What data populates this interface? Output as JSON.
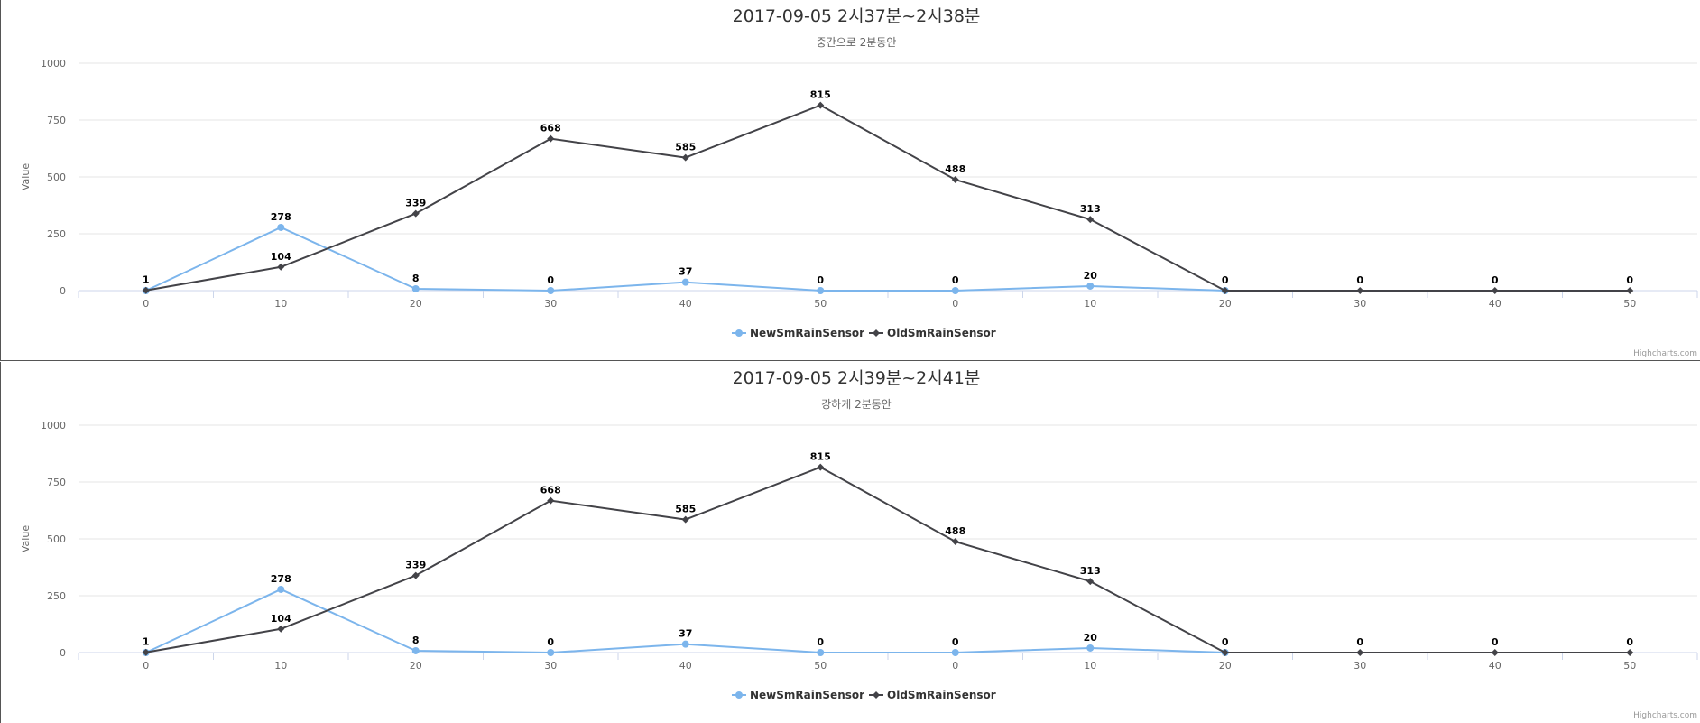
{
  "chart_data": [
    {
      "type": "line",
      "title": "2017-09-05 2시37분~2시38분",
      "subtitle": "중간으로 2분동안",
      "ylabel": "Value",
      "ylim": [
        0,
        1000
      ],
      "yticks": [
        0,
        250,
        500,
        750,
        1000
      ],
      "categories": [
        "0",
        "10",
        "20",
        "30",
        "40",
        "50",
        "0",
        "10",
        "20",
        "30",
        "40",
        "50"
      ],
      "grid": true,
      "legend_position": "bottom-center",
      "series": [
        {
          "name": "NewSmRainSensor",
          "color": "#7cb5ec",
          "marker": "circle",
          "values": [
            0,
            278,
            8,
            0,
            37,
            0,
            0,
            20,
            0,
            null,
            null,
            null
          ]
        },
        {
          "name": "OldSmRainSensor",
          "color": "#434348",
          "marker": "diamond",
          "values": [
            1,
            104,
            339,
            668,
            585,
            815,
            488,
            313,
            0,
            0,
            0,
            0
          ]
        }
      ],
      "data_labels": [
        "1",
        "278",
        "104",
        "8",
        "339",
        "0",
        "668",
        "37",
        "585",
        "0",
        "815",
        "0",
        "488",
        "20",
        "313",
        "0",
        "0",
        "0",
        "0"
      ],
      "credits": "Highcharts.com"
    },
    {
      "type": "line",
      "title": "2017-09-05 2시39분~2시41분",
      "subtitle": "강하게 2분동안",
      "ylabel": "Value",
      "ylim": [
        0,
        1000
      ],
      "yticks": [
        0,
        250,
        500,
        750,
        1000
      ],
      "categories": [
        "0",
        "10",
        "20",
        "30",
        "40",
        "50",
        "0",
        "10",
        "20",
        "30",
        "40",
        "50"
      ],
      "grid": true,
      "legend_position": "bottom-center",
      "series": [
        {
          "name": "NewSmRainSensor",
          "color": "#7cb5ec",
          "marker": "circle",
          "values": [
            0,
            278,
            8,
            0,
            37,
            0,
            0,
            20,
            0,
            null,
            null,
            null
          ]
        },
        {
          "name": "OldSmRainSensor",
          "color": "#434348",
          "marker": "diamond",
          "values": [
            1,
            104,
            339,
            668,
            585,
            815,
            488,
            313,
            0,
            0,
            0,
            0
          ]
        }
      ],
      "data_labels": [
        "1",
        "278",
        "104",
        "8",
        "339",
        "0",
        "668",
        "37",
        "585",
        "0",
        "815",
        "0",
        "488",
        "20",
        "313",
        "0",
        "0",
        "0",
        "0"
      ],
      "credits": "Highcharts.com"
    }
  ]
}
